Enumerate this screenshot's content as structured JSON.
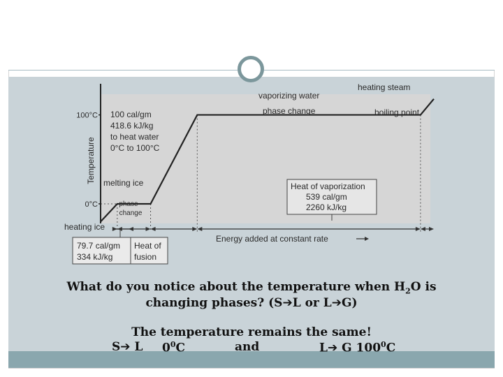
{
  "chart_data": {
    "type": "line",
    "ylabel": "Temperature",
    "xlabel": "Energy added at constant rate",
    "yticks": [
      {
        "label": "100°C",
        "value": 100
      },
      {
        "label": "0°C",
        "value": 0
      }
    ],
    "ylim": [
      -22,
      135
    ],
    "xlim": [
      0,
      100
    ],
    "series": [
      {
        "x": [
          0,
          5,
          15,
          29,
          96,
          100
        ],
        "y": [
          -20,
          0,
          0,
          100,
          100,
          118
        ]
      }
    ],
    "segment_labels": {
      "heating_ice": "heating ice",
      "melting_ice": "melting ice",
      "phase_change_small": [
        "phase",
        "change"
      ],
      "heat_water": [
        "100 cal/gm",
        "418.6 kJ/kg",
        "to heat water",
        "0°C to 100°C"
      ],
      "vaporizing": "vaporizing water",
      "phase_change": "phase change",
      "heating_steam": "heating steam",
      "boiling_point": "boiling point",
      "vaporization_box": [
        "Heat of vaporization",
        "539 cal/gm",
        "2260 kJ/kg"
      ],
      "fusion_values": [
        "79.7 cal/gm",
        "334 kJ/kg"
      ],
      "fusion_label": [
        "Heat of",
        "fusion"
      ]
    }
  },
  "slide": {
    "question_line1": "What do you notice about the temperature when H",
    "question_sub": "2",
    "question_after": "O is",
    "question_line2_pre": "changing phases? (S",
    "question_line2_mid": "L or L",
    "question_line2_post": "G)",
    "answer_line1": "The temperature remains the same!",
    "answer_s": "S",
    "answer_l": " L",
    "answer_temp1": "0",
    "answer_deg1": "0",
    "answer_c1": "C",
    "answer_and": "and",
    "answer_l2": "L",
    "answer_g": " G 100",
    "answer_deg2": "0",
    "answer_c2": "C",
    "arrow_glyph": "➔"
  }
}
